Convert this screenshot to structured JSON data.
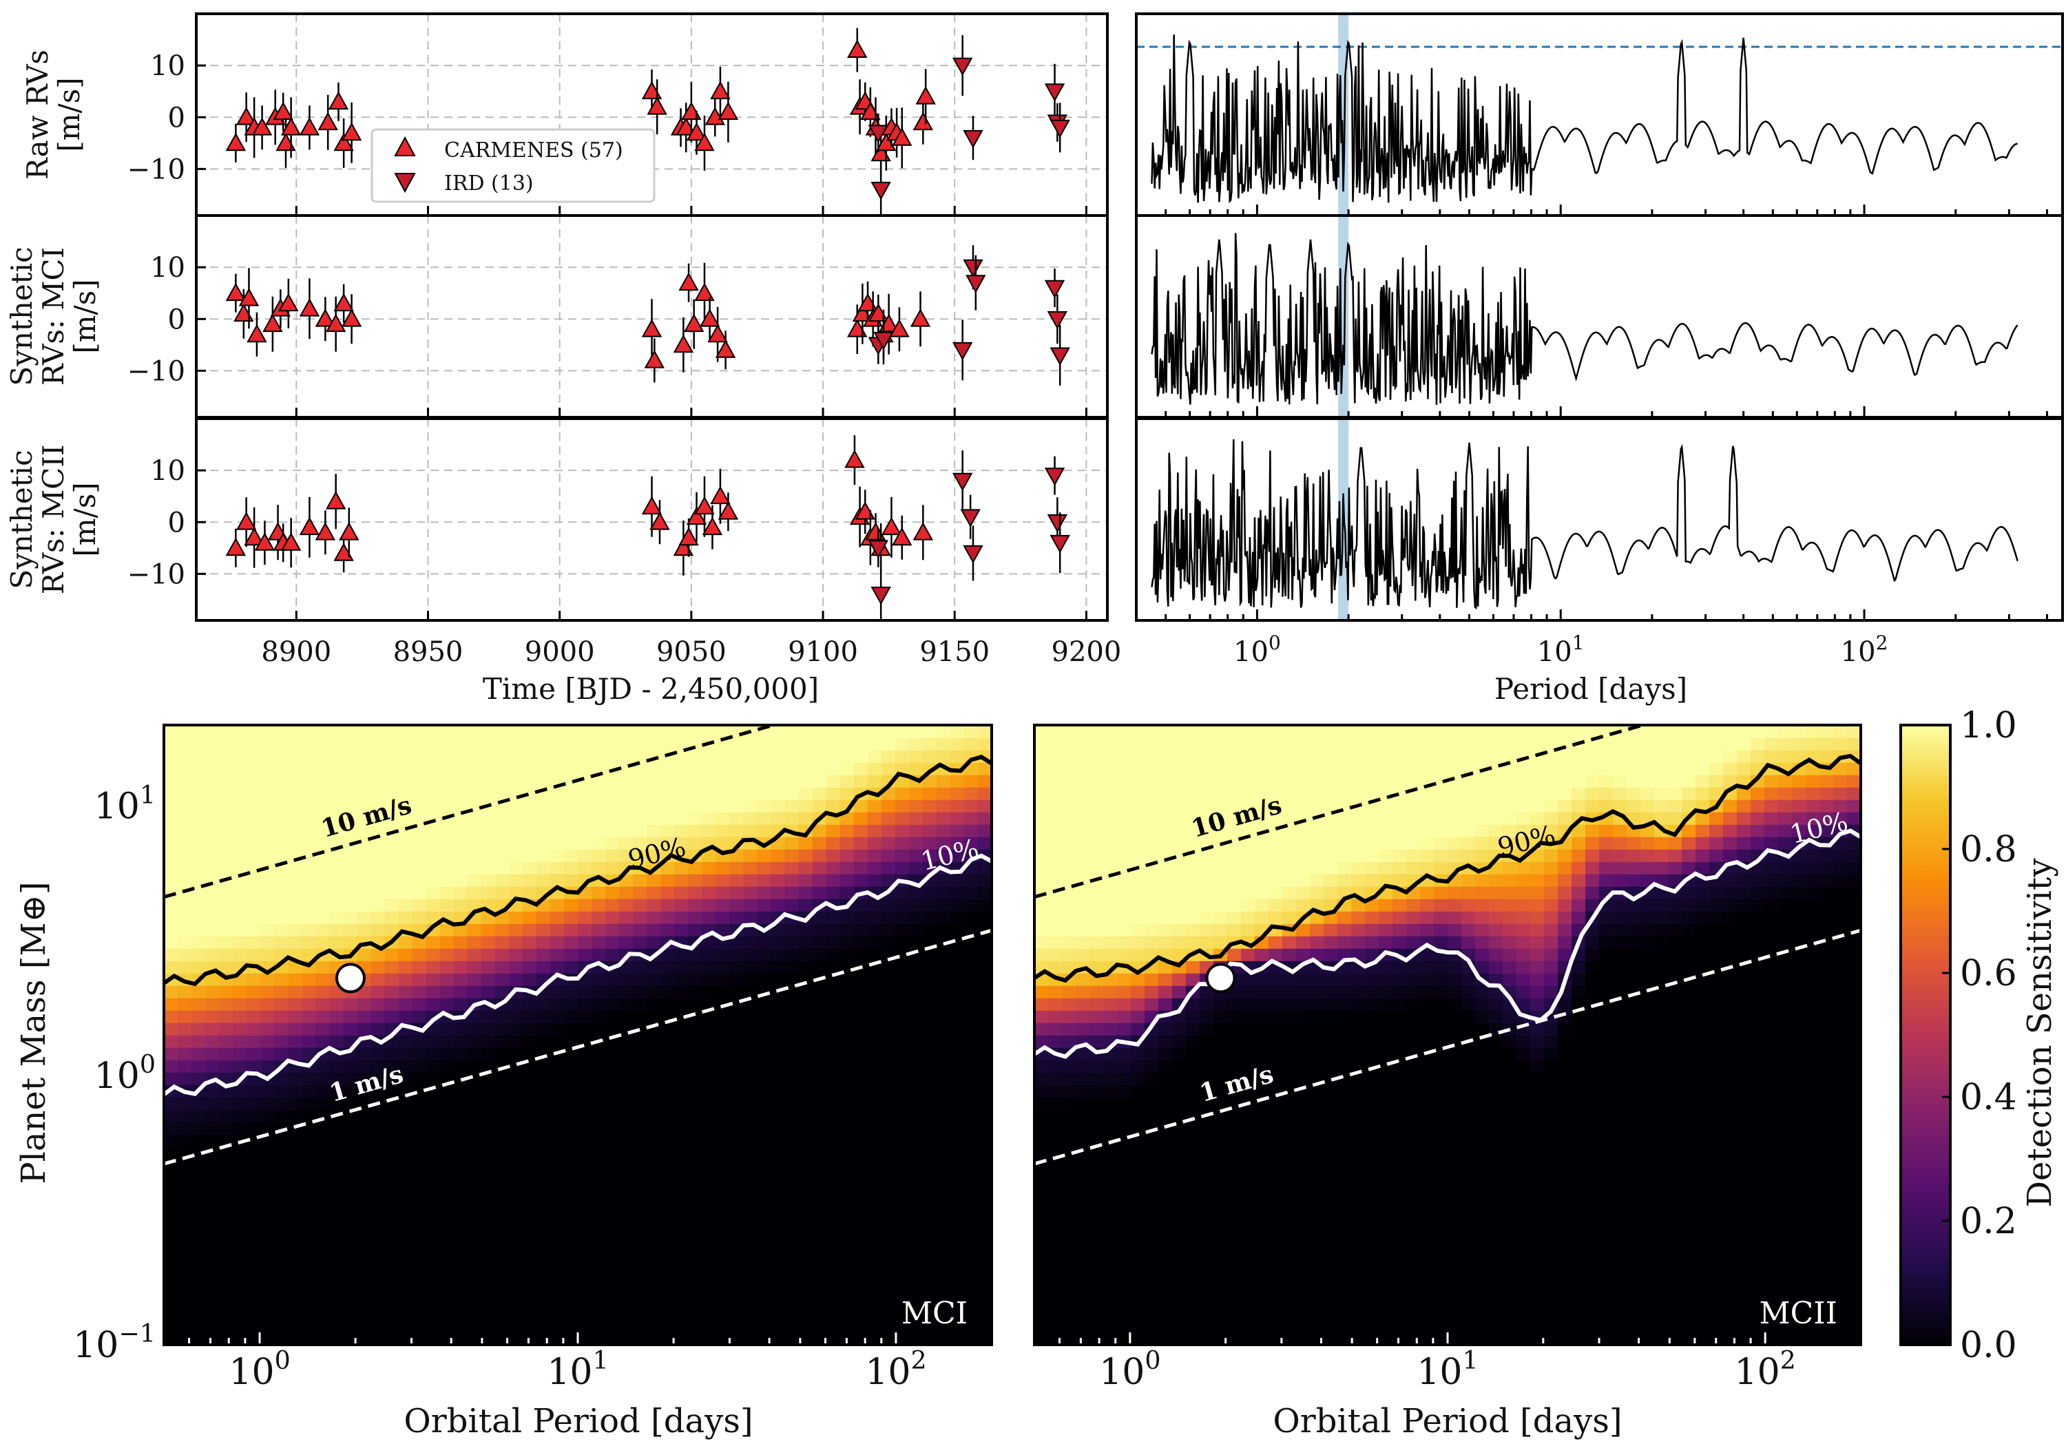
{
  "chart_data": [
    {
      "type": "scatter",
      "panel": "rv-timeseries",
      "xlabel": "Time [BJD - 2,450,000]",
      "xlim": [
        8862,
        9208
      ],
      "ylim": [
        -19,
        20
      ],
      "xticks": [
        8900,
        8950,
        9000,
        9050,
        9100,
        9150,
        9200
      ],
      "yticks": [
        -10,
        0,
        10
      ],
      "legend": {
        "position": "lower-left",
        "entries": [
          "CARMENES (57)",
          "IRD (13)"
        ]
      },
      "rows": [
        {
          "ylabel": [
            "Raw RVs",
            "[m/s]"
          ],
          "series": [
            {
              "name": "CARMENES (57)",
              "marker": "triangle-up",
              "color": "#e8262b",
              "x": [
                8877,
                8881,
                8884,
                8887,
                8892,
                8895,
                8896,
                8898,
                8905,
                8912,
                8916,
                8918,
                8921,
                9035,
                9037,
                9046,
                9048,
                9050,
                9052,
                9055,
                9059,
                9061,
                9064,
                9113,
                9114,
                9116,
                9118,
                9120,
                9122,
                9124,
                9126,
                9128,
                9130,
                9138,
                9139
              ],
              "y": [
                -5,
                0,
                -2,
                -2,
                0,
                1,
                -5,
                -2,
                -2,
                -1,
                3,
                -5,
                -3,
                5,
                2,
                -2,
                -2,
                1,
                -3,
                -5,
                0,
                5,
                1,
                13,
                2,
                3,
                1,
                -2,
                -7,
                -5,
                -2,
                -3,
                -4,
                -1,
                4
              ]
            },
            {
              "name": "IRD (13)",
              "marker": "triangle-down",
              "color": "#c41a2a",
              "x": [
                9121,
                9122,
                9153,
                9157,
                9188,
                9189,
                9190
              ],
              "y": [
                -3,
                -14,
                10,
                -4,
                5,
                -1,
                -2
              ]
            }
          ]
        },
        {
          "ylabel": [
            "Synthetic",
            "RVs: MCI",
            "[m/s]"
          ],
          "series": [
            {
              "name": "CARMENES (57)",
              "marker": "triangle-up",
              "color": "#e8262b",
              "x": [
                8877,
                8880,
                8882,
                8885,
                8891,
                8894,
                8897,
                8905,
                8911,
                8915,
                8918,
                8921,
                9035,
                9036,
                9047,
                9049,
                9051,
                9055,
                9057,
                9060,
                9063,
                9113,
                9115,
                9117,
                9119,
                9121,
                9123,
                9125,
                9129,
                9137
              ],
              "y": [
                5,
                1,
                4,
                -3,
                -1,
                2,
                3,
                2,
                0,
                -1,
                3,
                0,
                -2,
                -8,
                -5,
                7,
                -1,
                5,
                0,
                -3,
                -6,
                -2,
                1,
                3,
                0,
                1,
                -3,
                -1,
                -2,
                0
              ]
            },
            {
              "name": "IRD (13)",
              "marker": "triangle-down",
              "color": "#c41a2a",
              "x": [
                9121,
                9123,
                9153,
                9157,
                9158,
                9188,
                9189,
                9190
              ],
              "y": [
                -5,
                -4,
                -6,
                10,
                7,
                6,
                0,
                -7
              ]
            }
          ]
        },
        {
          "ylabel": [
            "Synthetic",
            "RVs: MCII",
            "[m/s]"
          ],
          "series": [
            {
              "name": "CARMENES (57)",
              "marker": "triangle-up",
              "color": "#e8262b",
              "x": [
                8877,
                8881,
                8884,
                8888,
                8893,
                8895,
                8898,
                8905,
                8911,
                8915,
                8918,
                8920,
                9035,
                9038,
                9047,
                9049,
                9052,
                9055,
                9058,
                9061,
                9064,
                9112,
                9114,
                9116,
                9118,
                9120,
                9122,
                9126,
                9130,
                9138
              ],
              "y": [
                -5,
                0,
                -3,
                -4,
                -2,
                -4,
                -4,
                -1,
                -2,
                4,
                -6,
                -2,
                3,
                0,
                -5,
                -3,
                1,
                3,
                -1,
                5,
                2,
                12,
                1,
                2,
                -3,
                -2,
                -5,
                -1,
                -3,
                -2
              ]
            },
            {
              "name": "IRD (13)",
              "marker": "triangle-down",
              "color": "#c41a2a",
              "x": [
                9121,
                9122,
                9153,
                9156,
                9157,
                9188,
                9189,
                9190
              ],
              "y": [
                -5,
                -14,
                8,
                1,
                -6,
                9,
                0,
                -4
              ]
            }
          ]
        }
      ]
    },
    {
      "type": "line",
      "panel": "periodograms",
      "xlabel": "Period [days]",
      "xscale": "log",
      "xlim": [
        0.4,
        450
      ],
      "xtick_labels": [
        "10^0",
        "10^1",
        "10^2"
      ],
      "xticks": [
        1,
        10,
        100
      ],
      "highlight_band_days": [
        1.85,
        2.0
      ],
      "raw_row_threshold_line": {
        "style": "dashed",
        "color": "#1f77b4"
      },
      "rows": [
        {
          "name": "Raw RVs",
          "peaks_period_days": [
            0.6,
            2.0,
            25,
            40
          ]
        },
        {
          "name": "Synthetic RVs: MCI",
          "peaks_period_days": [
            0.75,
            1.1,
            1.5,
            2.0
          ]
        },
        {
          "name": "Synthetic RVs: MCII",
          "peaks_period_days": [
            2.2,
            5.0,
            25,
            37
          ]
        }
      ]
    },
    {
      "type": "heatmap",
      "panel": "MCI",
      "label": "MCI",
      "xlabel": "Orbital Period [days]",
      "ylabel": "Planet Mass [M⊕]",
      "xscale": "log",
      "yscale": "log",
      "xlim": [
        0.5,
        200
      ],
      "ylim": [
        0.1,
        20
      ],
      "xtick_labels": [
        "10^0",
        "10^1",
        "10^2"
      ],
      "ytick_labels": [
        "10^-1",
        "10^0",
        "10^1"
      ],
      "contour_90": {
        "label": "90%",
        "period": [
          0.5,
          1,
          2,
          5,
          10,
          20,
          50,
          100,
          200
        ],
        "mass": [
          2.2,
          2.5,
          2.9,
          4.0,
          5.0,
          6.3,
          8.0,
          12.5,
          15
        ]
      },
      "contour_10": {
        "label": "10%",
        "period": [
          0.5,
          1,
          2,
          5,
          10,
          20,
          50,
          100,
          200
        ],
        "mass": [
          0.85,
          1.0,
          1.3,
          1.8,
          2.4,
          3.0,
          3.9,
          5.0,
          6.5
        ]
      },
      "rv_lines": [
        {
          "label": "10 m/s",
          "style": "dashed",
          "color": "#000000"
        },
        {
          "label": "1 m/s",
          "style": "dashed",
          "color": "#ffffff"
        }
      ],
      "planet": {
        "period": 1.93,
        "mass": 2.3
      }
    },
    {
      "type": "heatmap",
      "panel": "MCII",
      "label": "MCII",
      "xlabel": "Orbital Period [days]",
      "xscale": "log",
      "yscale": "log",
      "xlim": [
        0.5,
        200
      ],
      "ylim": [
        0.1,
        20
      ],
      "xtick_labels": [
        "10^0",
        "10^1",
        "10^2"
      ],
      "contour_90": {
        "label": "90%",
        "period": [
          0.5,
          1,
          2,
          5,
          10,
          20,
          30,
          50,
          100,
          200
        ],
        "mass": [
          2.3,
          2.5,
          2.9,
          4.5,
          5.5,
          7.0,
          9.5,
          8.0,
          13.5,
          15
        ]
      },
      "contour_10": {
        "label": "10%",
        "period": [
          0.5,
          1,
          2,
          5,
          10,
          20,
          30,
          50,
          100,
          200
        ],
        "mass": [
          1.2,
          1.3,
          2.5,
          2.6,
          3.0,
          1.5,
          4.5,
          5.0,
          6.5,
          8.0
        ]
      },
      "rv_lines": [
        {
          "label": "10 m/s",
          "style": "dashed",
          "color": "#000000"
        },
        {
          "label": "1 m/s",
          "style": "dashed",
          "color": "#ffffff"
        }
      ],
      "planet": {
        "period": 1.93,
        "mass": 2.3
      }
    },
    {
      "type": "colorbar",
      "label": "Detection Sensitivity",
      "range": [
        0.0,
        1.0
      ],
      "ticks": [
        "0.0",
        "0.2",
        "0.4",
        "0.6",
        "0.8",
        "1.0"
      ],
      "colormap": "inferno"
    }
  ]
}
